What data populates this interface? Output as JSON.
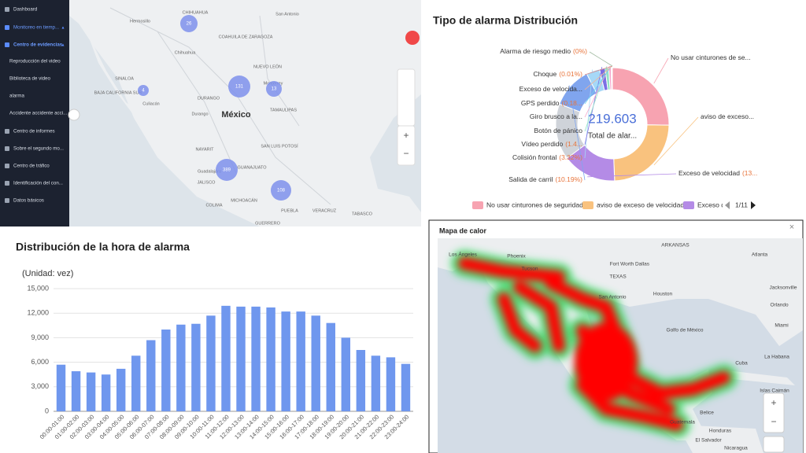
{
  "sidebar": {
    "items": [
      "Dashboard",
      "Monitoreo en tiemp...",
      "Centro de evidencias",
      "Reproducción del video",
      "Biblioteca de video",
      "alarma",
      "Accidente accidente acci...",
      "Centro de informes",
      "Sobre el segundo mo...",
      "Centro de tráfico",
      "Identificación del con...",
      "Datos básicos"
    ]
  },
  "map": {
    "labels": [
      "Hermosillo",
      "CHIHUAHUA",
      "San Antonio",
      "COAHUILA DE ZARAGOZA",
      "NUEVO LEÓN",
      "Monterrey",
      "SINALOA",
      "DURANGO",
      "México",
      "TAMAULIPAS",
      "SAN LUIS POTOSÍ",
      "NAYARIT",
      "GUANAJUATO",
      "JALISCO",
      "MICHOACÁN",
      "PUEBLA",
      "GUERRERO",
      "TABASCO",
      "Culiacán",
      "Durango",
      "Guadalajara",
      "COLIMA",
      "BAJA CALIFORNIA SUR",
      "Chihuahua",
      "VERACRUZ"
    ],
    "clusters": [
      "26",
      "4",
      "131",
      "13",
      "389",
      "108"
    ]
  },
  "chart_data": [
    {
      "type": "pie",
      "title": "Tipo de alarma Distribución",
      "center_value": "219.603",
      "center_label": "Total de alar...",
      "categories": [
        "No usar cinturones de se...",
        "aviso de exceso...",
        "Exceso de velocidad",
        null,
        "Salida de carril",
        "Colisión frontal",
        "Vídeo perdido",
        "Botón de pánico",
        "Giro brusco a la...",
        "GPS perdido",
        "Exceso de velocida...",
        "Choque",
        "Alarma de riesgo medio"
      ],
      "values": [
        22,
        21,
        13.4,
        14,
        10.19,
        3.32,
        1.4,
        0.9,
        0.6,
        0.18,
        0.1,
        0.01,
        0
      ],
      "value_labels": [
        null,
        null,
        "(13...",
        null,
        "(10.19%)",
        "(3.32%)",
        "(1.4...",
        null,
        null,
        "(0.18...",
        null,
        "(0.01%)",
        "(0%)"
      ],
      "colors": [
        "#f7a3b1",
        "#f9c27e",
        "#b48be6",
        "#cfd3d9",
        "#80a5ee",
        "#a6d8f7",
        "#7c6fe4",
        "#93e3c4",
        "#f5a6cb",
        "#6fd3f2",
        "#f3b697",
        "#d98a8a",
        "#9fb89f"
      ],
      "legend": [
        "No usar cinturones de seguridad",
        "aviso de exceso de velocidad",
        "Exceso de"
      ],
      "legend_page": "1/11"
    },
    {
      "type": "bar",
      "title": "Distribución de la hora de alarma",
      "unit_label": "(Unidad: vez)",
      "categories": [
        "00:00-01:00",
        "01:00-02:00",
        "02:00-03:00",
        "03:00-04:00",
        "04:00-05:00",
        "05:00-06:00",
        "06:00-07:00",
        "07:00-08:00",
        "08:00-09:00",
        "09:00-10:00",
        "10:00-11:00",
        "11:00-12:00",
        "12:00-13:00",
        "13:00-14:00",
        "14:00-15:00",
        "15:00-16:00",
        "16:00-17:00",
        "17:00-18:00",
        "18:00-19:00",
        "19:00-20:00",
        "20:00-21:00",
        "21:00-22:00",
        "22:00-23:00",
        "23:00-24:00"
      ],
      "values": [
        5700,
        4900,
        4750,
        4500,
        5200,
        6800,
        8700,
        10000,
        10600,
        10700,
        11700,
        12900,
        12800,
        12800,
        12700,
        12200,
        12200,
        11700,
        10800,
        9000,
        7500,
        6800,
        6600,
        5800
      ],
      "color": "#6f97ee",
      "ylim": [
        0,
        15000
      ],
      "yticks": [
        0,
        {
          "value": 3000,
          "label": "3,000"
        },
        {
          "value": 6000,
          "label": "6,000"
        },
        {
          "value": 9000,
          "label": "9,000"
        },
        {
          "value": 12000,
          "label": "12,000"
        },
        {
          "value": 15000,
          "label": "15,000"
        }
      ],
      "grid": true
    }
  ],
  "heatmap": {
    "title": "Mapa de calor",
    "labels": [
      "Los Ángeles",
      "Phoenix",
      "Tucson",
      "Dallas",
      "Fort Worth",
      "TEXAS",
      "Houston",
      "San Antonio",
      "ARKANSAS",
      "Atlanta",
      "Jacksonville",
      "Orlando",
      "Miami",
      "La Habana",
      "Cuba",
      "Islas Caimán",
      "Belice",
      "Honduras",
      "Guatemala",
      "El Salvador",
      "Nicaragua",
      "Golfo de México"
    ]
  }
}
